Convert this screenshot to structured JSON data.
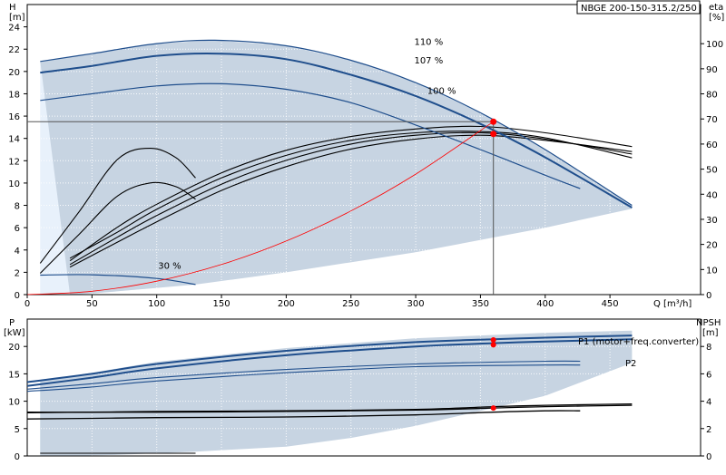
{
  "model_label": "NBGE 200-150-315.2/250",
  "colors": {
    "envelope": "#c7d4e2",
    "envelope_light": "#e8f1fb",
    "curve_dark": "#1f4e8c",
    "curve_black": "#000000",
    "system_curve": "#ff0000",
    "duty_point": "#ff0000",
    "grid": "#ffffff"
  },
  "chart_data": [
    {
      "type": "line",
      "id": "head",
      "ylabel_left": "H",
      "unit_left": "[m]",
      "ylabel_right": "eta",
      "unit_right": "[%]",
      "xlabel": "Q [m³/h]",
      "xlim": [
        0,
        520
      ],
      "ylim": [
        0,
        26
      ],
      "y2lim": [
        0,
        115.6
      ],
      "xticks": [
        0,
        50,
        100,
        150,
        200,
        250,
        300,
        350,
        400,
        450
      ],
      "yticks": [
        0,
        2,
        4,
        6,
        8,
        10,
        12,
        14,
        16,
        18,
        20,
        22,
        24
      ],
      "y2ticks": [
        0,
        10,
        20,
        30,
        40,
        50,
        60,
        70,
        80,
        90,
        100
      ],
      "duty_head": 15.5,
      "duty_flow": 360,
      "head_curves": [
        {
          "label": "110 %",
          "x": [
            10,
            50,
            100,
            145,
            200,
            250,
            300,
            350,
            400,
            467
          ],
          "y": [
            20.9,
            21.6,
            22.5,
            22.8,
            22.3,
            21.0,
            19.0,
            16.3,
            13.0,
            8.0
          ]
        },
        {
          "label": "107 %",
          "x": [
            10,
            50,
            100,
            150,
            200,
            250,
            300,
            350,
            400,
            467
          ],
          "y": [
            19.9,
            20.5,
            21.4,
            21.6,
            21.1,
            19.7,
            17.8,
            15.3,
            12.3,
            7.8
          ]
        },
        {
          "label": "100 %",
          "x": [
            10,
            50,
            100,
            150,
            200,
            250,
            300,
            350,
            400,
            427
          ],
          "y": [
            17.4,
            18.0,
            18.7,
            18.9,
            18.4,
            17.2,
            15.2,
            13.0,
            10.7,
            9.5
          ]
        },
        {
          "label": "30 %",
          "x": [
            10,
            50,
            100,
            130
          ],
          "y": [
            1.75,
            1.78,
            1.45,
            0.9
          ]
        }
      ],
      "efficiency_curves": [
        {
          "name": "eta-low-1",
          "x": [
            10,
            40,
            70,
            95,
            115,
            130
          ],
          "y": [
            12.5,
            33,
            54,
            58.3,
            54.5,
            46.5
          ]
        },
        {
          "name": "eta-low-2",
          "x": [
            10,
            40,
            70,
            95,
            115,
            130
          ],
          "y": [
            8.5,
            24,
            39.4,
            44.5,
            43,
            38
          ]
        },
        {
          "name": "eta-main-1",
          "x": [
            33,
            70,
            100,
            150,
            200,
            250,
            300,
            350,
            400,
            467
          ],
          "y": [
            14.5,
            25,
            34,
            46.5,
            55.5,
            61.5,
            64.5,
            65.0,
            62.5,
            54.5
          ]
        },
        {
          "name": "eta-main-2",
          "x": [
            33,
            70,
            100,
            150,
            200,
            250,
            300,
            350,
            400,
            467
          ],
          "y": [
            12.0,
            23,
            31.5,
            44,
            53.5,
            60.0,
            63.5,
            64.5,
            62.0,
            56.0
          ]
        },
        {
          "name": "eta-main-3",
          "x": [
            33,
            70,
            100,
            150,
            200,
            250,
            300,
            350,
            400,
            467
          ],
          "y": [
            13.5,
            27,
            36,
            48.5,
            57.5,
            63.0,
            66.0,
            67.0,
            64.5,
            59.0
          ]
        },
        {
          "name": "eta-main-4",
          "x": [
            33,
            70,
            100,
            150,
            200,
            250,
            300,
            350,
            400,
            467
          ],
          "y": [
            11.0,
            21,
            29,
            41.5,
            51,
            58.0,
            62.0,
            63.5,
            61.5,
            57.0
          ]
        }
      ],
      "system_curve": {
        "x": [
          0,
          50,
          100,
          150,
          200,
          250,
          300,
          360
        ],
        "y": [
          0,
          0.3,
          1.2,
          2.7,
          4.8,
          7.5,
          10.8,
          15.5
        ]
      },
      "duty_points": [
        {
          "x": 360,
          "y": 15.5
        },
        {
          "x": 360,
          "y": 14.4
        }
      ],
      "envelope": {
        "x": [
          10,
          50,
          100,
          145,
          200,
          250,
          300,
          350,
          400,
          467,
          467,
          400,
          300,
          200,
          130,
          100,
          70,
          50,
          35,
          33
        ],
        "y": [
          20.9,
          21.6,
          22.5,
          22.8,
          22.3,
          21.0,
          19.0,
          16.3,
          13.0,
          8.0,
          7.7,
          6.0,
          3.8,
          2.0,
          0.9,
          0.6,
          0.3,
          0.1,
          0.0,
          0.0
        ]
      }
    },
    {
      "type": "line",
      "id": "power",
      "ylabel_left": "P",
      "unit_left": "[kW]",
      "ylabel_right": "NPSH",
      "unit_right": "[m]",
      "xlim": [
        0,
        520
      ],
      "ylim": [
        0,
        25
      ],
      "y2lim": [
        0,
        10
      ],
      "yticks": [
        0,
        5,
        10,
        15,
        20
      ],
      "y2ticks": [
        0,
        2,
        4,
        6,
        8
      ],
      "legend": [
        "P1 (motor+freq.converter)",
        "P2"
      ],
      "power_curves": [
        {
          "name": "P1",
          "x": [
            0,
            50,
            100,
            200,
            300,
            360,
            400,
            467
          ],
          "y": [
            13.5,
            15.0,
            16.8,
            19.2,
            20.8,
            21.3,
            21.6,
            22.0
          ]
        },
        {
          "name": "P2",
          "x": [
            0,
            50,
            100,
            200,
            300,
            360,
            400,
            467
          ],
          "y": [
            12.8,
            14.3,
            16.0,
            18.4,
            20.0,
            20.6,
            20.9,
            21.3
          ]
        },
        {
          "name": "p-100-a",
          "x": [
            0,
            50,
            100,
            200,
            300,
            400,
            427
          ],
          "y": [
            12.2,
            13.2,
            14.3,
            15.8,
            16.8,
            17.3,
            17.3
          ]
        },
        {
          "name": "p-100-b",
          "x": [
            0,
            50,
            100,
            200,
            300,
            400,
            427
          ],
          "y": [
            11.8,
            12.6,
            13.7,
            15.2,
            16.3,
            16.6,
            16.6
          ]
        },
        {
          "name": "p-30",
          "x": [
            10,
            130
          ],
          "y": [
            0.5,
            0.5
          ]
        }
      ],
      "npsh_curves": [
        {
          "name": "npsh-a",
          "x": [
            0,
            50,
            100,
            200,
            300,
            360,
            400,
            467
          ],
          "y": [
            3.2,
            3.2,
            3.25,
            3.3,
            3.4,
            3.6,
            3.7,
            3.8
          ]
        },
        {
          "name": "npsh-b",
          "x": [
            0,
            50,
            100,
            200,
            300,
            360,
            400,
            467
          ],
          "y": [
            3.15,
            3.2,
            3.2,
            3.25,
            3.35,
            3.5,
            3.6,
            3.7
          ]
        },
        {
          "name": "npsh-c",
          "x": [
            0,
            50,
            100,
            200,
            300,
            360,
            400,
            427
          ],
          "y": [
            2.7,
            2.75,
            2.8,
            2.85,
            3.0,
            3.2,
            3.3,
            3.3
          ]
        }
      ],
      "duty_points": [
        {
          "x": 360,
          "y": 21.2,
          "axis": "left"
        },
        {
          "x": 360,
          "y": 20.3,
          "axis": "left"
        },
        {
          "x": 360,
          "y": 3.5,
          "axis": "right"
        }
      ],
      "envelope": {
        "x": [
          10,
          50,
          100,
          200,
          300,
          400,
          467,
          467,
          400,
          300,
          250,
          200,
          130,
          100,
          70,
          50,
          35,
          33,
          10
        ],
        "y": [
          13.7,
          15.2,
          17.2,
          19.7,
          21.5,
          22.5,
          22.9,
          17.0,
          11.0,
          5.5,
          3.3,
          1.7,
          0.8,
          0.5,
          0.2,
          0.1,
          0.0,
          0.0,
          0.0
        ]
      }
    }
  ]
}
